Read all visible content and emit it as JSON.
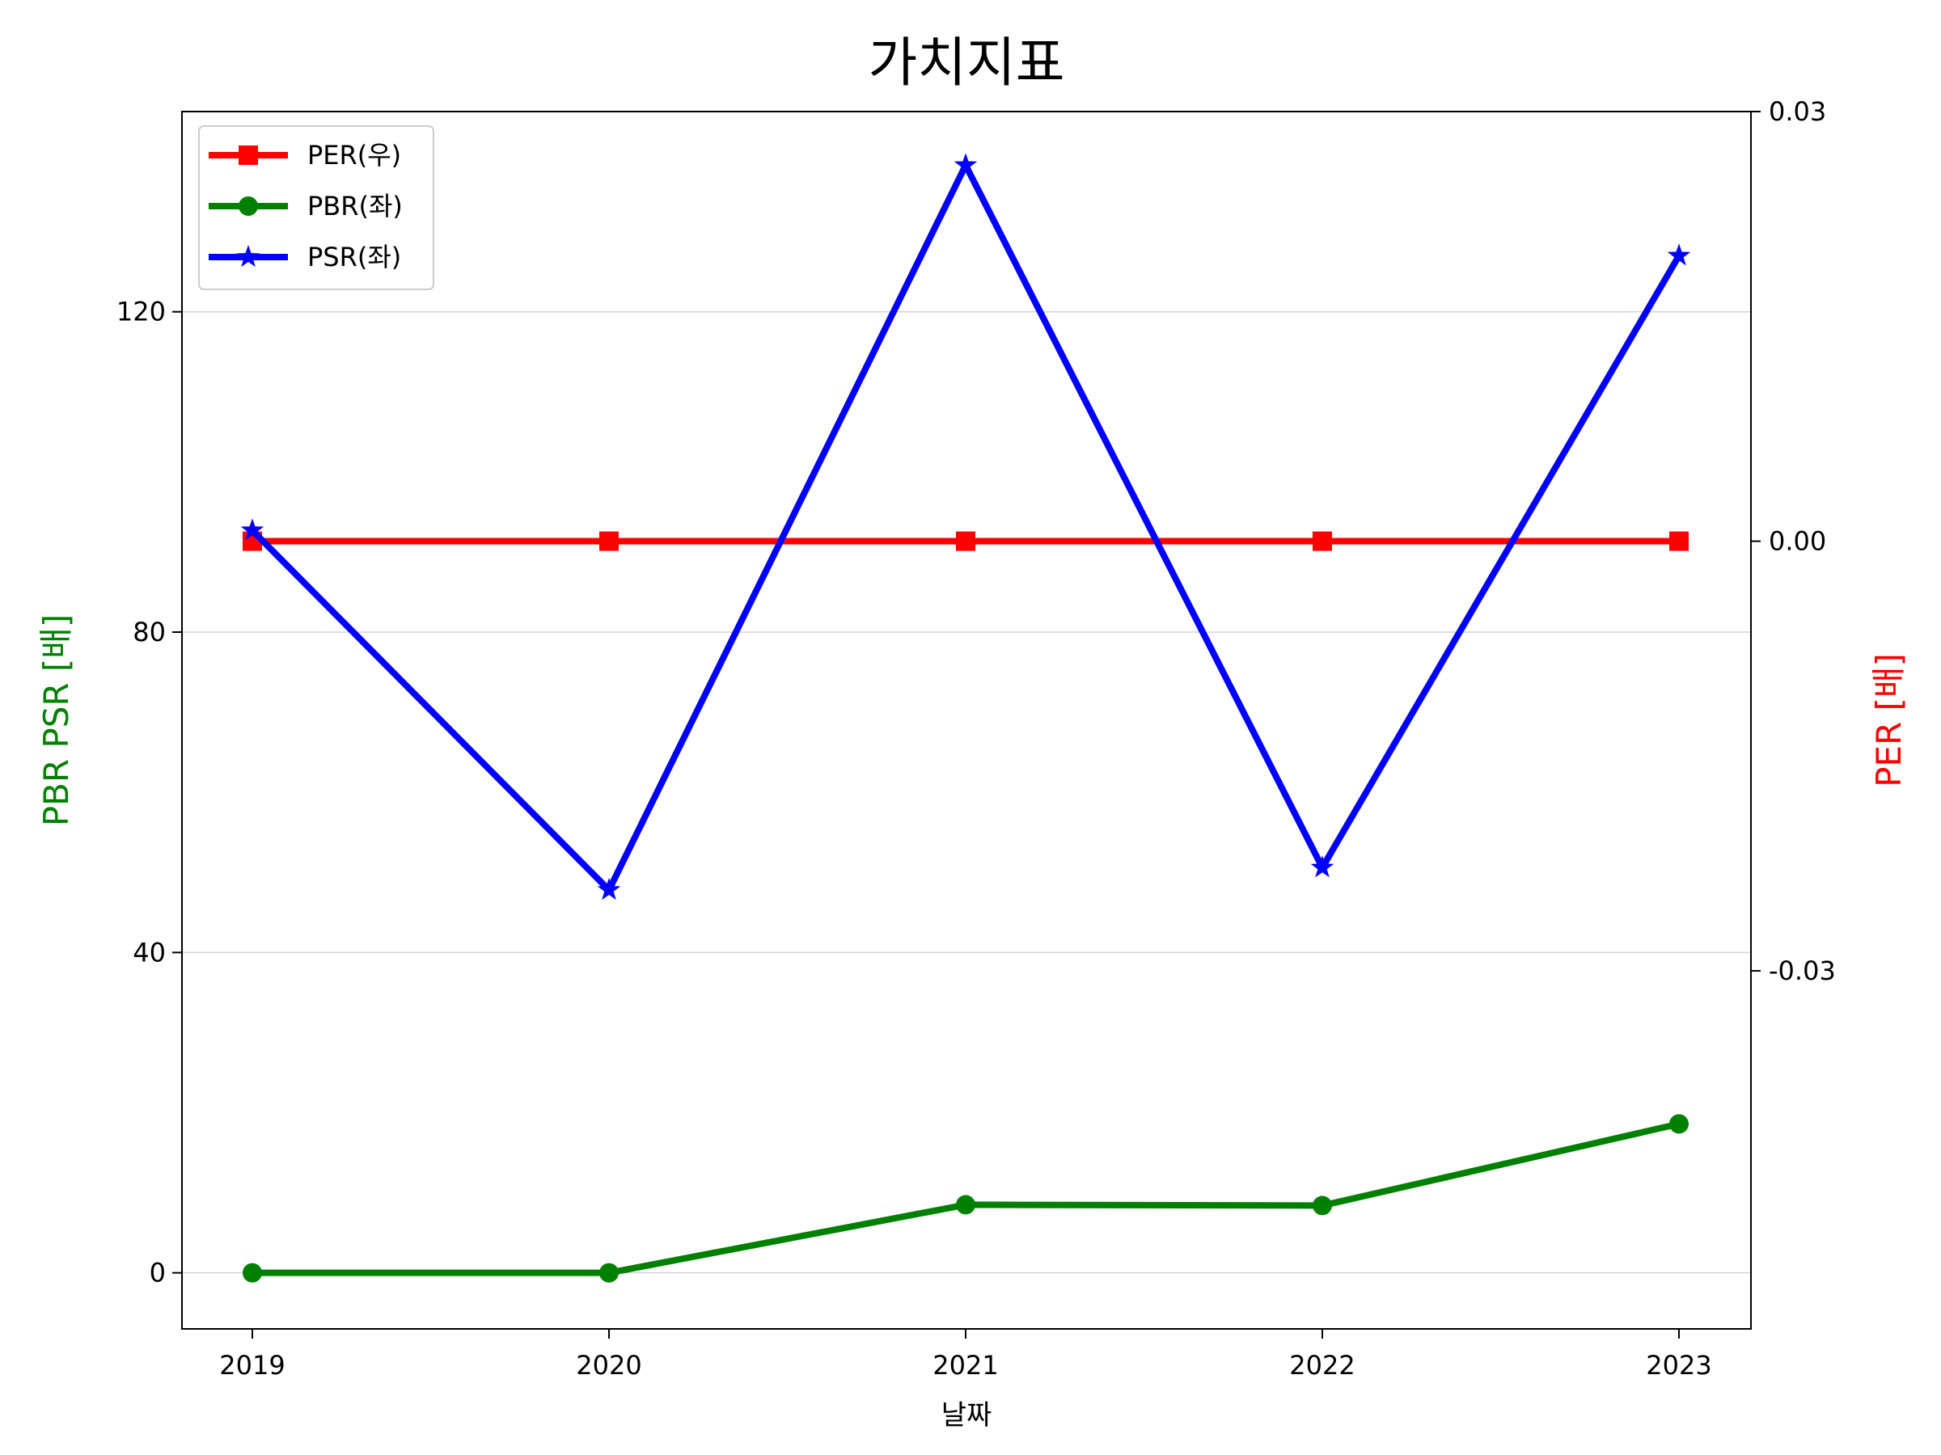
{
  "chart_data": {
    "type": "line",
    "title": "가치지표",
    "xlabel": "날짜",
    "ylabel_left": "PBR PSR [배]",
    "ylabel_right": "PER [배]",
    "categories": [
      "2019",
      "2020",
      "2021",
      "2022",
      "2023"
    ],
    "left_axis": {
      "ylim": [
        -7,
        145
      ],
      "ticks": [
        0,
        40,
        80,
        120
      ],
      "tick_labels": [
        "0",
        "40",
        "80",
        "120"
      ],
      "grid": true
    },
    "right_axis": {
      "ylim": [
        -0.055,
        0.03
      ],
      "ticks": [
        -0.03,
        0.0,
        0.03
      ],
      "tick_labels": [
        "-0.03",
        "0.00",
        "0.03"
      ]
    },
    "series": [
      {
        "name": "PER(우)",
        "axis": "right",
        "color": "#ff0000",
        "marker": "square",
        "values": [
          0,
          0,
          0,
          0,
          0
        ]
      },
      {
        "name": "PBR(좌)",
        "axis": "left",
        "color": "#008000",
        "marker": "circle",
        "values": [
          0,
          0,
          8.5,
          8.4,
          18.6
        ]
      },
      {
        "name": "PSR(좌)",
        "axis": "left",
        "color": "#0000ff",
        "marker": "star",
        "values": [
          92.7,
          47.8,
          138.3,
          50.6,
          127.0
        ]
      }
    ],
    "legend": {
      "position": "top-left"
    },
    "colors": {
      "left_label": "#008000",
      "right_label": "#ff0000",
      "grid": "#d3d3d3"
    }
  }
}
